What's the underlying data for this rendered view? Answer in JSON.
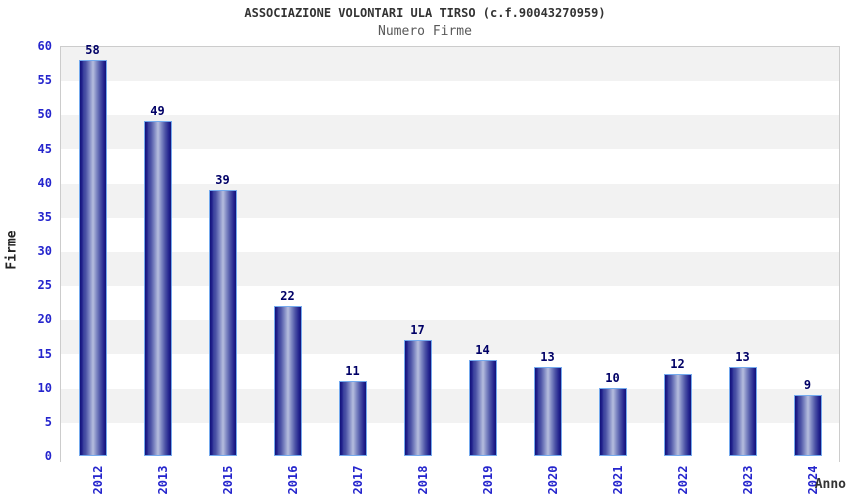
{
  "chart_data": {
    "type": "bar",
    "title": "ASSOCIAZIONE VOLONTARI ULA TIRSO (c.f.90043270959)",
    "subtitle": "Numero Firme",
    "xlabel": "Anno",
    "ylabel": "Firme",
    "categories": [
      "2012",
      "2013",
      "2015",
      "2016",
      "2017",
      "2018",
      "2019",
      "2020",
      "2021",
      "2022",
      "2023",
      "2024"
    ],
    "values": [
      58,
      49,
      39,
      22,
      11,
      17,
      14,
      13,
      10,
      12,
      13,
      9
    ],
    "ylim": [
      0,
      60
    ],
    "ytick_step": 5,
    "ytick_labels": [
      "0",
      "5",
      "10",
      "15",
      "20",
      "25",
      "30",
      "35",
      "40",
      "45",
      "50",
      "55",
      "60"
    ],
    "grid": "alternating horizontal bands every 5 units",
    "legend": "none",
    "colors": {
      "band_gray": "#f2f2f2",
      "band_white": "#ffffff",
      "plot_border": "#cccccc",
      "tick_label_blue": "#2525cd",
      "value_label_navy": "#000066",
      "title_gray": "#333333",
      "subtitle_gray": "#595959",
      "bar_edge_navy": "#12127a",
      "bar_center_light": "#b4bcde",
      "bar_outline_lightblue": "#74aaee"
    }
  }
}
